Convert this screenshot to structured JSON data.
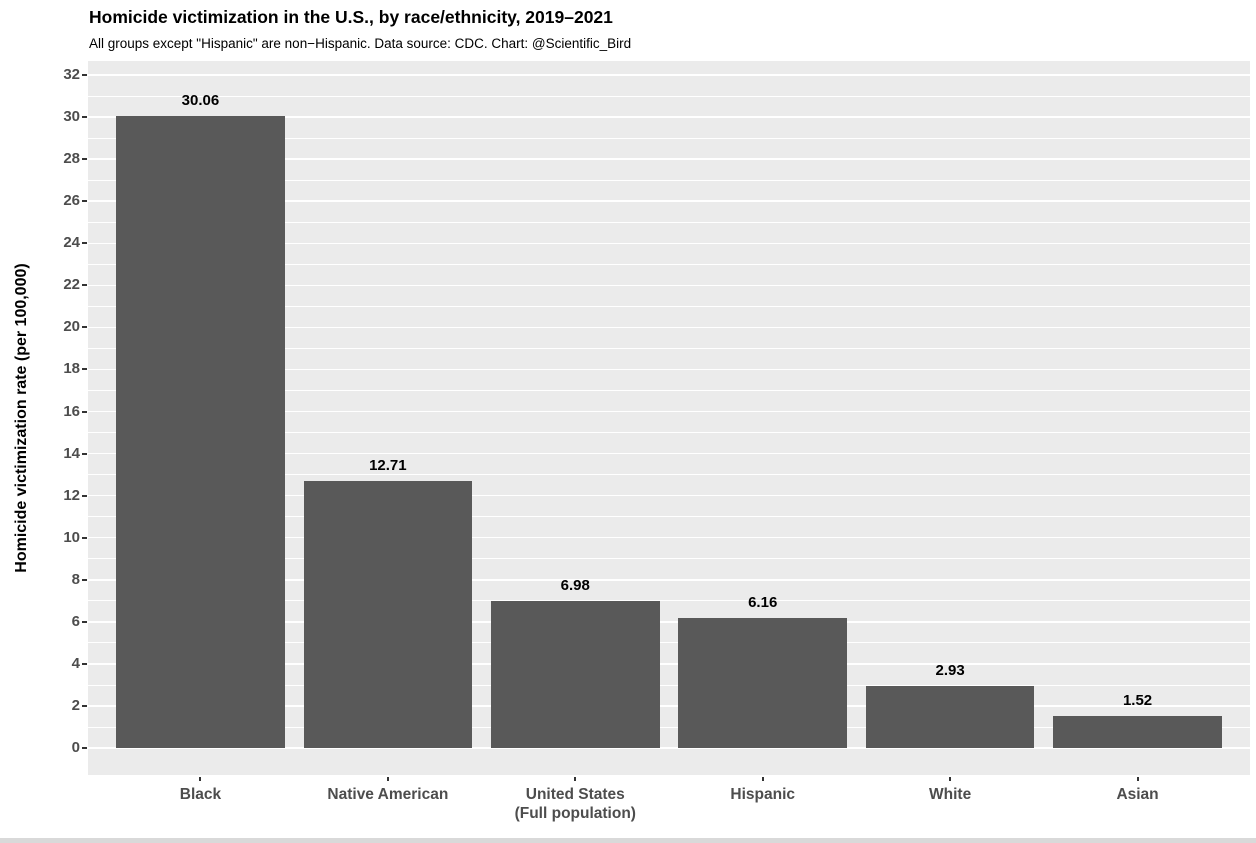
{
  "chart_data": {
    "type": "bar",
    "title": "Homicide victimization in the U.S., by race/ethnicity, 2019–2021",
    "subtitle": "All groups except \"Hispanic\" are non−Hispanic. Data source: CDC. Chart: @Scientific_Bird",
    "categories": [
      "Black",
      "Native American",
      "United States\n(Full population)",
      "Hispanic",
      "White",
      "Asian"
    ],
    "values": [
      30.06,
      12.71,
      6.98,
      6.16,
      2.93,
      1.52
    ],
    "value_labels": [
      "30.06",
      "12.71",
      "6.98",
      "6.16",
      "2.93",
      "1.52"
    ],
    "xlabel": "",
    "ylabel": "Homicide victimization rate (per 100,000)",
    "ylim": [
      0,
      32
    ],
    "y_ticks": [
      0,
      2,
      4,
      6,
      8,
      10,
      12,
      14,
      16,
      18,
      20,
      22,
      24,
      26,
      28,
      30,
      32
    ],
    "grid": "white major and minor horizontal gridlines on gray panel",
    "legend": "none",
    "bar_width_fraction": 0.9,
    "colors": {
      "bar": "#595959",
      "panel_background": "#EBEBEB",
      "gridline": "#FFFFFF",
      "axis_text": "#4D4D4D",
      "title_text": "#000000",
      "tick_mark": "#333333",
      "bottom_strip": "#D9D9D9"
    }
  }
}
